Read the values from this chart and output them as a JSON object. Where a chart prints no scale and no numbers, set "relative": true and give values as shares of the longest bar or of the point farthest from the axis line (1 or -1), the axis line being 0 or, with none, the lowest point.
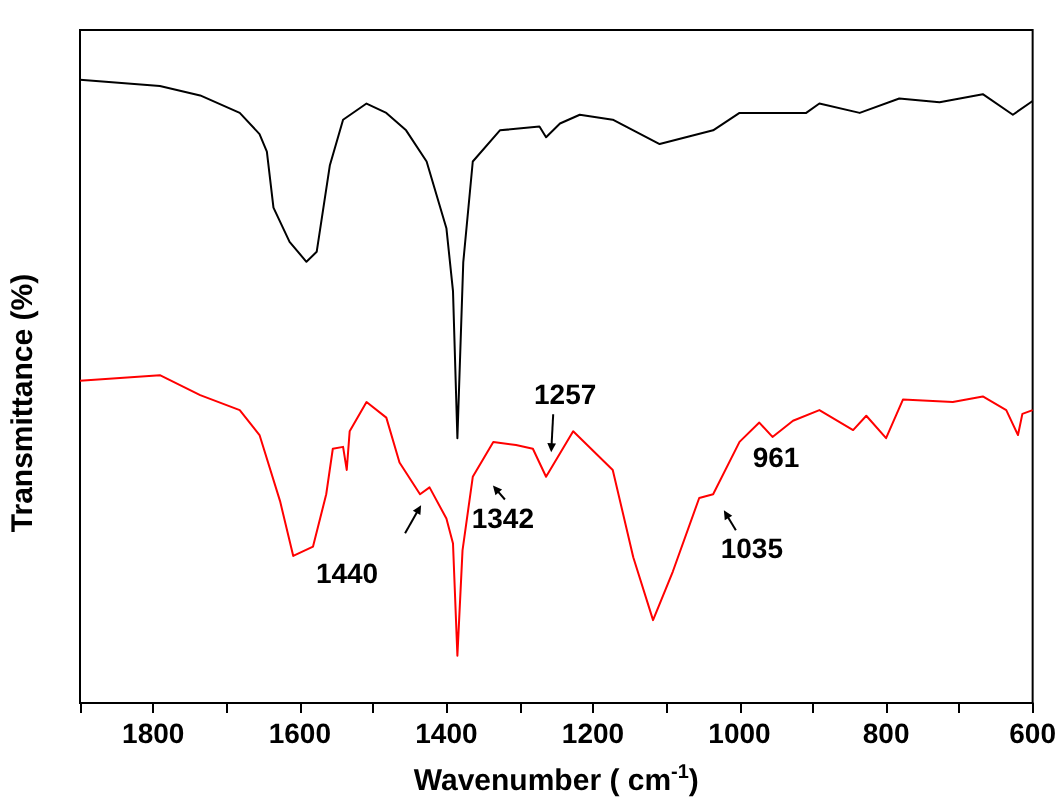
{
  "chart_data": {
    "type": "line",
    "relative": true,
    "xlabel": "Wavenumber ( cm$^{-1}$)",
    "ylabel": "Transmittance (%)",
    "xlim": [
      1900,
      600
    ],
    "xticks": [
      {
        "value": 1900,
        "label": null
      },
      1800,
      {
        "value": 1700,
        "label": null
      },
      1600,
      {
        "value": 1500,
        "label": null
      },
      1400,
      {
        "value": 1300,
        "label": null
      },
      1200,
      {
        "value": 1100,
        "label": null
      },
      1000,
      {
        "value": 900,
        "label": null
      },
      800,
      {
        "value": 700,
        "label": null
      },
      600
    ],
    "tick_labels": "x",
    "grid": false,
    "marker": "none",
    "series": [
      {
        "color": "#000000",
        "x": [
          1900,
          1791,
          1736,
          1682,
          1655,
          1645,
          1636,
          1614,
          1591,
          1577,
          1559,
          1541,
          1509,
          1482,
          1455,
          1427,
          1400,
          1391,
          1385,
          1377,
          1364,
          1327,
          1273,
          1264,
          1245,
          1218,
          1173,
          1109,
          1036,
          1000,
          909,
          891,
          836,
          782,
          727,
          668,
          627,
          600
        ],
        "values": [
          1.0,
          0.99,
          0.975,
          0.947,
          0.913,
          0.885,
          0.795,
          0.74,
          0.708,
          0.724,
          0.863,
          0.936,
          0.962,
          0.947,
          0.919,
          0.869,
          0.762,
          0.661,
          0.425,
          0.707,
          0.869,
          0.919,
          0.925,
          0.908,
          0.93,
          0.944,
          0.936,
          0.897,
          0.919,
          0.947,
          0.947,
          0.962,
          0.947,
          0.97,
          0.964,
          0.977,
          0.944,
          0.966
        ]
      },
      {
        "color": "#ff0000",
        "x": [
          1900,
          1791,
          1736,
          1682,
          1655,
          1627,
          1609,
          1582,
          1564,
          1555,
          1541,
          1536,
          1532,
          1509,
          1482,
          1464,
          1436,
          1423,
          1400,
          1391,
          1385,
          1378,
          1364,
          1336,
          1305,
          1282,
          1264,
          1227,
          1173,
          1145,
          1118,
          1091,
          1055,
          1036,
          1000,
          973,
          955,
          927,
          891,
          845,
          827,
          800,
          777,
          709,
          668,
          636,
          620,
          614,
          600
        ],
        "values": [
          0.517,
          0.526,
          0.494,
          0.47,
          0.43,
          0.324,
          0.236,
          0.251,
          0.335,
          0.408,
          0.411,
          0.374,
          0.436,
          0.483,
          0.458,
          0.386,
          0.335,
          0.346,
          0.296,
          0.256,
          0.076,
          0.245,
          0.363,
          0.419,
          0.414,
          0.408,
          0.363,
          0.436,
          0.374,
          0.234,
          0.133,
          0.211,
          0.329,
          0.335,
          0.419,
          0.45,
          0.427,
          0.453,
          0.47,
          0.438,
          0.461,
          0.425,
          0.487,
          0.483,
          0.492,
          0.47,
          0.43,
          0.464,
          0.47
        ]
      }
    ],
    "annotations": [
      {
        "text": "1440",
        "x": 1440,
        "y": 0.34
      },
      {
        "text": "1342",
        "x": 1342,
        "y": 0.41
      },
      {
        "text": "1257",
        "x": 1257,
        "y": 0.38
      },
      {
        "text": "961",
        "x": 961,
        "y": 0.43
      },
      {
        "text": "1035",
        "x": 1035,
        "y": 0.335
      }
    ]
  }
}
